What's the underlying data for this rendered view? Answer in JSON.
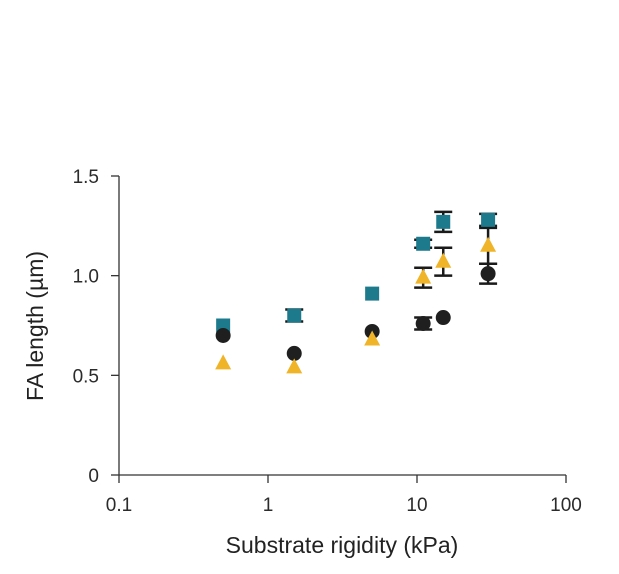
{
  "chart_data": {
    "type": "scatter",
    "title": "",
    "xlabel": "Substrate rigidity (kPa)",
    "ylabel": "FA length (µm)",
    "xscale": "log",
    "xlim": [
      0.1,
      100
    ],
    "ylim": [
      0,
      1.5
    ],
    "x_ticks": [
      0.1,
      1,
      10,
      100
    ],
    "x_tick_labels": [
      "0.1",
      "1",
      "10",
      "100"
    ],
    "y_ticks": [
      0,
      0.5,
      1.0,
      1.5
    ],
    "y_tick_labels": [
      "0",
      "0.5",
      "1.0",
      "1.5"
    ],
    "grid": false,
    "legend": "none",
    "series": [
      {
        "marker": "square",
        "color": "#1d7a8c",
        "points": [
          {
            "x": 0.5,
            "y": 0.75,
            "err": 0
          },
          {
            "x": 1.5,
            "y": 0.8,
            "err": 0.03
          },
          {
            "x": 5,
            "y": 0.91,
            "err": 0
          },
          {
            "x": 11,
            "y": 1.16,
            "err": 0.02
          },
          {
            "x": 15,
            "y": 1.27,
            "err": 0.05
          },
          {
            "x": 30,
            "y": 1.28,
            "err": 0.03
          }
        ]
      },
      {
        "marker": "circle",
        "color": "#1f1f1f",
        "points": [
          {
            "x": 0.5,
            "y": 0.7,
            "err": 0
          },
          {
            "x": 1.5,
            "y": 0.61,
            "err": 0
          },
          {
            "x": 5,
            "y": 0.72,
            "err": 0
          },
          {
            "x": 11,
            "y": 0.76,
            "err": 0.03
          },
          {
            "x": 15,
            "y": 0.79,
            "err": 0
          },
          {
            "x": 30,
            "y": 1.01,
            "err": 0.05
          }
        ]
      },
      {
        "marker": "triangle",
        "color": "#f0b429",
        "points": [
          {
            "x": 0.5,
            "y": 0.56,
            "err": 0
          },
          {
            "x": 1.5,
            "y": 0.54,
            "err": 0
          },
          {
            "x": 5,
            "y": 0.68,
            "err": 0
          },
          {
            "x": 11,
            "y": 0.99,
            "err": 0.05
          },
          {
            "x": 15,
            "y": 1.07,
            "err": 0.07
          },
          {
            "x": 30,
            "y": 1.15,
            "err": 0.09
          }
        ]
      }
    ]
  }
}
